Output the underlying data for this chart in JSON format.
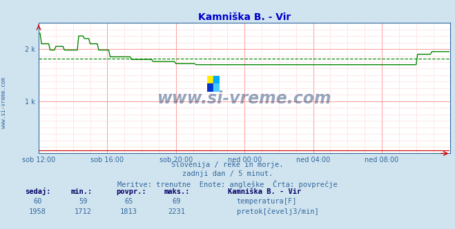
{
  "title": "Kamniška B. - Vir",
  "bg_color": "#d0e4f0",
  "plot_bg_color": "#ffffff",
  "grid_color_major": "#ff9999",
  "grid_color_minor": "#ffdddd",
  "title_color": "#0000cc",
  "axis_color": "#336699",
  "xlabel_ticks": [
    "sob 12:00",
    "sob 16:00",
    "sob 20:00",
    "ned 00:00",
    "ned 04:00",
    "ned 08:00"
  ],
  "ylabel_ticks": [
    "",
    "1 k",
    "2 k"
  ],
  "ylabel_vals": [
    0,
    1000,
    2000
  ],
  "ylim": [
    0,
    2500
  ],
  "xlim": [
    0,
    288
  ],
  "temp_color": "#cc0000",
  "flow_color": "#008800",
  "avg_color": "#008800",
  "watermark_text": "www.si-vreme.com",
  "watermark_color": "#1a3a6e",
  "footer_lines": [
    "Slovenija / reke in morje.",
    "zadnji dan / 5 minut.",
    "Meritve: trenutne  Enote: angleške  Črta: povprečje"
  ],
  "footer_color": "#336699",
  "legend_title": "Kamniška B. - Vir",
  "legend_color": "#000066",
  "stats_headers": [
    "sedaj:",
    "min.:",
    "povpr.:",
    "maks.:"
  ],
  "stats_temp": [
    60,
    59,
    65,
    69
  ],
  "stats_flow": [
    1958,
    1712,
    1813,
    2231
  ],
  "flow_avg": 1813,
  "total_points": 288,
  "logo_colors": [
    "#ffee00",
    "#00aaff",
    "#0033cc",
    "#44ccff"
  ]
}
